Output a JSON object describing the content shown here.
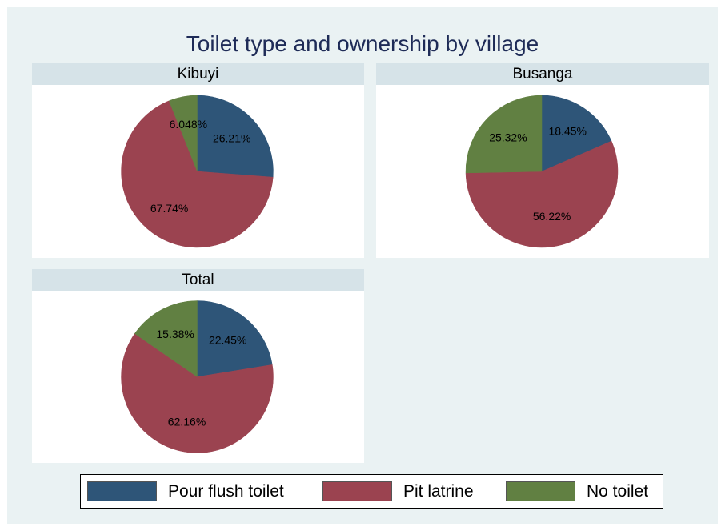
{
  "title": "Toilet type and ownership by village",
  "colors": {
    "pour_flush": "#2e5578",
    "pit_latrine": "#9b4350",
    "no_toilet": "#618042",
    "outer_bg": "#eaf2f3",
    "strip_bg": "#d6e3e8",
    "title_text": "#1e2b57"
  },
  "legend": [
    {
      "label": "Pour flush toilet",
      "color": "#2e5578"
    },
    {
      "label": "Pit latrine",
      "color": "#9b4350"
    },
    {
      "label": "No toilet",
      "color": "#618042"
    }
  ],
  "chart_data": [
    {
      "type": "pie",
      "title": "Kibuyi",
      "categories": [
        "Pour flush toilet",
        "Pit latrine",
        "No toilet"
      ],
      "values": [
        26.21,
        67.74,
        6.048
      ],
      "labels": [
        "26.21%",
        "67.74%",
        "6.048%"
      ]
    },
    {
      "type": "pie",
      "title": "Busanga",
      "categories": [
        "Pour flush toilet",
        "Pit latrine",
        "No toilet"
      ],
      "values": [
        18.45,
        56.22,
        25.32
      ],
      "labels": [
        "18.45%",
        "56.22%",
        "25.32%"
      ]
    },
    {
      "type": "pie",
      "title": "Total",
      "categories": [
        "Pour flush toilet",
        "Pit latrine",
        "No toilet"
      ],
      "values": [
        22.45,
        62.16,
        15.38
      ],
      "labels": [
        "22.45%",
        "62.16%",
        "15.38%"
      ]
    }
  ]
}
